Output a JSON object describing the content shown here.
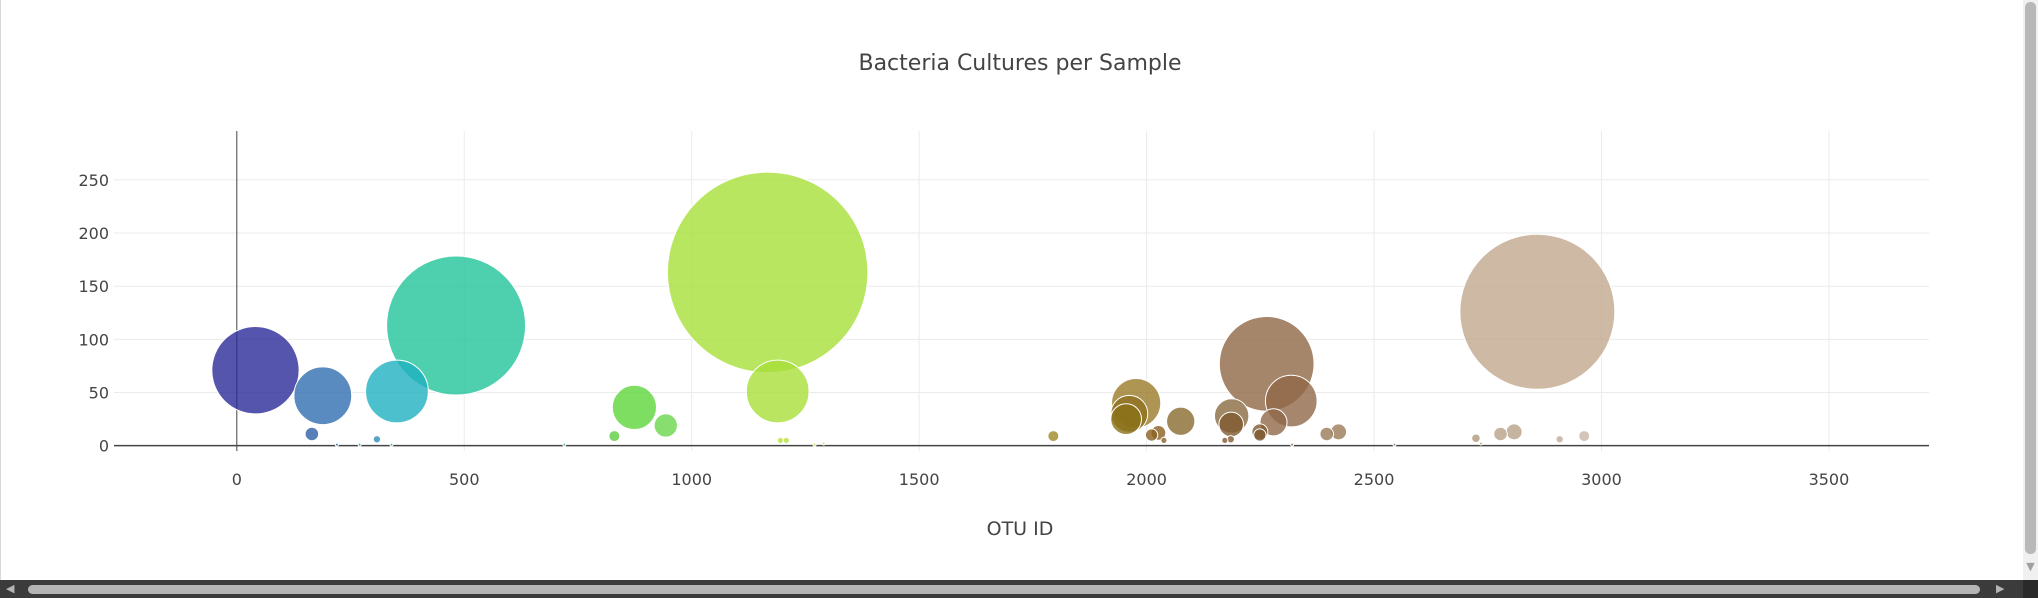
{
  "chart_data": {
    "type": "scatter",
    "subtype": "bubble",
    "title": "Bacteria Cultures per Sample",
    "xlabel": "OTU ID",
    "ylabel": "",
    "xlim": [
      -270,
      3720
    ],
    "ylim": [
      -5,
      296
    ],
    "xticks": [
      0,
      500,
      1000,
      1500,
      2000,
      2500,
      3000,
      3500
    ],
    "yticks": [
      0,
      50,
      100,
      150,
      200,
      250
    ],
    "grid": true,
    "legend": "none",
    "points": [
      {
        "x": 41,
        "y": 71,
        "size": 71,
        "color": "#2a2a9a"
      },
      {
        "x": 189,
        "y": 47,
        "size": 47,
        "color": "#2f6db0"
      },
      {
        "x": 165,
        "y": 11,
        "size": 11,
        "color": "#2f5fa8"
      },
      {
        "x": 308,
        "y": 6,
        "size": 6,
        "color": "#2f8fb8"
      },
      {
        "x": 352,
        "y": 51,
        "size": 51,
        "color": "#1fb0c0"
      },
      {
        "x": 482,
        "y": 113,
        "size": 113,
        "color": "#22c49a"
      },
      {
        "x": 830,
        "y": 9,
        "size": 9,
        "color": "#5ccc40"
      },
      {
        "x": 874,
        "y": 36,
        "size": 36,
        "color": "#5cd63a"
      },
      {
        "x": 943,
        "y": 19,
        "size": 19,
        "color": "#6ad64a"
      },
      {
        "x": 1167,
        "y": 163,
        "size": 163,
        "color": "#a8e03a"
      },
      {
        "x": 1189,
        "y": 51,
        "size": 51,
        "color": "#a8df3a"
      },
      {
        "x": 1195,
        "y": 5,
        "size": 5,
        "color": "#b8e040"
      },
      {
        "x": 1208,
        "y": 5,
        "size": 5,
        "color": "#b8e040"
      },
      {
        "x": 1795,
        "y": 9,
        "size": 9,
        "color": "#a08a28"
      },
      {
        "x": 1977,
        "y": 40,
        "size": 40,
        "color": "#9a7a28"
      },
      {
        "x": 1962,
        "y": 30,
        "size": 30,
        "color": "#907020"
      },
      {
        "x": 1955,
        "y": 25,
        "size": 25,
        "color": "#887018"
      },
      {
        "x": 2011,
        "y": 10,
        "size": 10,
        "color": "#8a6020"
      },
      {
        "x": 2026,
        "y": 12,
        "size": 12,
        "color": "#8a6020"
      },
      {
        "x": 2038,
        "y": 5,
        "size": 5,
        "color": "#8a6020"
      },
      {
        "x": 2075,
        "y": 23,
        "size": 23,
        "color": "#8a6a30"
      },
      {
        "x": 2187,
        "y": 28,
        "size": 28,
        "color": "#8a6a40"
      },
      {
        "x": 2186,
        "y": 20,
        "size": 20,
        "color": "#805a30"
      },
      {
        "x": 2172,
        "y": 5,
        "size": 5,
        "color": "#805a30"
      },
      {
        "x": 2185,
        "y": 6,
        "size": 6,
        "color": "#805a30"
      },
      {
        "x": 2249,
        "y": 13,
        "size": 13,
        "color": "#7e5a30"
      },
      {
        "x": 2249,
        "y": 10,
        "size": 10,
        "color": "#7e5a30"
      },
      {
        "x": 2264,
        "y": 77,
        "size": 77,
        "color": "#8f6845"
      },
      {
        "x": 2318,
        "y": 42,
        "size": 42,
        "color": "#906848"
      },
      {
        "x": 2279,
        "y": 22,
        "size": 22,
        "color": "#906848"
      },
      {
        "x": 2396,
        "y": 11,
        "size": 11,
        "color": "#9a7a58"
      },
      {
        "x": 2422,
        "y": 13,
        "size": 13,
        "color": "#9a7a58"
      },
      {
        "x": 2724,
        "y": 7,
        "size": 7,
        "color": "#b09878"
      },
      {
        "x": 2778,
        "y": 11,
        "size": 11,
        "color": "#b8a088"
      },
      {
        "x": 2808,
        "y": 13,
        "size": 13,
        "color": "#b8a088"
      },
      {
        "x": 2859,
        "y": 126,
        "size": 126,
        "color": "#c2a88e"
      },
      {
        "x": 2908,
        "y": 6,
        "size": 6,
        "color": "#c0aa98"
      },
      {
        "x": 2962,
        "y": 9,
        "size": 9,
        "color": "#c8b8a8"
      },
      {
        "x": 220,
        "y": 1,
        "size": 1,
        "color": "#2f6db0"
      },
      {
        "x": 270,
        "y": 1,
        "size": 1,
        "color": "#2f8fb8"
      },
      {
        "x": 340,
        "y": 1,
        "size": 1,
        "color": "#1fb0c0"
      },
      {
        "x": 720,
        "y": 1,
        "size": 1,
        "color": "#3cc870"
      },
      {
        "x": 1270,
        "y": 1,
        "size": 1,
        "color": "#b8e040"
      },
      {
        "x": 1290,
        "y": 2,
        "size": 2,
        "color": "#c8d840"
      },
      {
        "x": 2320,
        "y": 1,
        "size": 1,
        "color": "#906848"
      },
      {
        "x": 2545,
        "y": 1,
        "size": 1,
        "color": "#a08060"
      },
      {
        "x": 2735,
        "y": 2,
        "size": 2,
        "color": "#b09878"
      }
    ]
  }
}
